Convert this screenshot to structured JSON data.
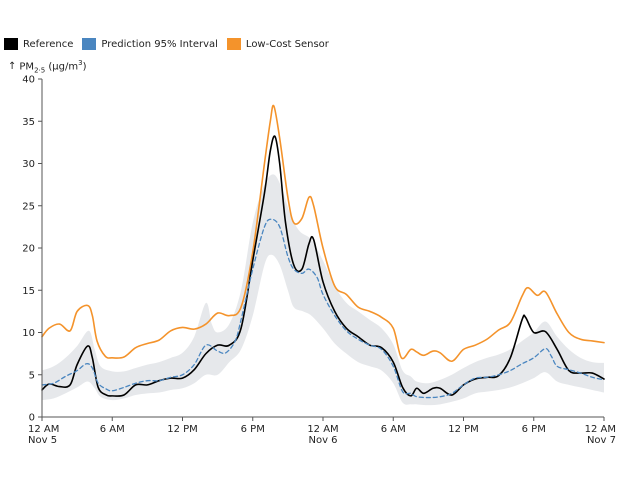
{
  "chart_data": {
    "type": "line",
    "ylabel": "PM",
    "ylabel_sub": "2·5",
    "ylabel_unit_pre": " (μg/m",
    "ylabel_unit_sup": "3",
    "ylabel_unit_post": ")",
    "ylim": [
      0,
      40
    ],
    "yticks": [
      0,
      5,
      10,
      15,
      20,
      25,
      30,
      35,
      40
    ],
    "xlim_hours": [
      0,
      48
    ],
    "xticks": [
      {
        "h": 0,
        "line1": "12 AM",
        "line2": "Nov 5"
      },
      {
        "h": 6,
        "line1": "6 AM",
        "line2": ""
      },
      {
        "h": 12,
        "line1": "12 PM",
        "line2": ""
      },
      {
        "h": 18,
        "line1": "6 PM",
        "line2": ""
      },
      {
        "h": 24,
        "line1": "12 AM",
        "line2": "Nov 6"
      },
      {
        "h": 30,
        "line1": "6 AM",
        "line2": ""
      },
      {
        "h": 36,
        "line1": "12 PM",
        "line2": ""
      },
      {
        "h": 42,
        "line1": "6 PM",
        "line2": ""
      },
      {
        "h": 48,
        "line1": "12 AM",
        "line2": "Nov 7"
      }
    ],
    "legend": [
      {
        "name": "Reference",
        "color": "#000000"
      },
      {
        "name": "Prediction 95% Interval",
        "color": "#4a86c0"
      },
      {
        "name": "Low-Cost Sensor",
        "color": "#f4932b"
      }
    ],
    "series": [
      {
        "name": "Low-Cost Sensor",
        "color": "#f4932b",
        "points": [
          [
            0,
            9.5
          ],
          [
            0.6,
            10.5
          ],
          [
            1.5,
            11.0
          ],
          [
            2.4,
            10.2
          ],
          [
            3,
            12.5
          ],
          [
            3.9,
            13.2
          ],
          [
            4.3,
            12.0
          ],
          [
            4.7,
            9.0
          ],
          [
            5.4,
            7.2
          ],
          [
            6,
            7.0
          ],
          [
            7,
            7.1
          ],
          [
            8,
            8.2
          ],
          [
            9,
            8.7
          ],
          [
            10,
            9.1
          ],
          [
            11,
            10.2
          ],
          [
            12,
            10.6
          ],
          [
            13,
            10.4
          ],
          [
            14,
            11.0
          ],
          [
            15,
            12.3
          ],
          [
            16,
            12.0
          ],
          [
            17,
            13.0
          ],
          [
            18,
            19.5
          ],
          [
            19,
            30.0
          ],
          [
            19.5,
            35.0
          ],
          [
            19.8,
            36.8
          ],
          [
            20.3,
            33.0
          ],
          [
            21,
            26.0
          ],
          [
            21.5,
            23.0
          ],
          [
            22.2,
            23.5
          ],
          [
            22.8,
            26.0
          ],
          [
            23.2,
            25.0
          ],
          [
            24,
            20.0
          ],
          [
            25,
            15.5
          ],
          [
            26,
            14.5
          ],
          [
            27,
            13.0
          ],
          [
            28,
            12.5
          ],
          [
            29,
            11.8
          ],
          [
            30,
            10.5
          ],
          [
            30.7,
            7.0
          ],
          [
            31.5,
            8.0
          ],
          [
            32,
            7.7
          ],
          [
            32.6,
            7.3
          ],
          [
            33.4,
            7.8
          ],
          [
            34,
            7.6
          ],
          [
            35,
            6.6
          ],
          [
            36,
            8.0
          ],
          [
            37,
            8.5
          ],
          [
            38,
            9.2
          ],
          [
            39,
            10.3
          ],
          [
            40,
            11.2
          ],
          [
            41,
            14.3
          ],
          [
            41.5,
            15.3
          ],
          [
            42.3,
            14.4
          ],
          [
            43,
            14.8
          ],
          [
            44,
            12.2
          ],
          [
            45,
            10.0
          ],
          [
            46,
            9.2
          ],
          [
            47,
            9.0
          ],
          [
            48,
            8.8
          ]
        ]
      },
      {
        "name": "Reference",
        "color": "#000000",
        "points": [
          [
            0,
            3.2
          ],
          [
            0.6,
            3.9
          ],
          [
            1.5,
            3.6
          ],
          [
            2.4,
            3.8
          ],
          [
            3,
            6.2
          ],
          [
            3.9,
            8.4
          ],
          [
            4.3,
            7.0
          ],
          [
            4.8,
            3.5
          ],
          [
            5.5,
            2.6
          ],
          [
            6,
            2.5
          ],
          [
            7,
            2.6
          ],
          [
            8,
            3.8
          ],
          [
            9,
            3.8
          ],
          [
            10,
            4.3
          ],
          [
            11,
            4.6
          ],
          [
            12,
            4.6
          ],
          [
            13,
            5.6
          ],
          [
            14,
            7.5
          ],
          [
            15,
            8.5
          ],
          [
            16,
            8.5
          ],
          [
            17,
            10.5
          ],
          [
            18,
            18.5
          ],
          [
            19,
            26.5
          ],
          [
            19.5,
            31.5
          ],
          [
            19.9,
            33.2
          ],
          [
            20.3,
            30.0
          ],
          [
            20.8,
            23.0
          ],
          [
            21.5,
            18.0
          ],
          [
            22.2,
            17.5
          ],
          [
            22.8,
            20.5
          ],
          [
            23.2,
            21.0
          ],
          [
            24,
            16.0
          ],
          [
            25,
            12.5
          ],
          [
            26,
            10.5
          ],
          [
            27,
            9.5
          ],
          [
            28,
            8.5
          ],
          [
            29,
            8.2
          ],
          [
            30,
            6.5
          ],
          [
            30.8,
            3.5
          ],
          [
            31.5,
            2.5
          ],
          [
            32,
            3.4
          ],
          [
            32.6,
            2.8
          ],
          [
            33.4,
            3.4
          ],
          [
            34,
            3.4
          ],
          [
            35,
            2.6
          ],
          [
            36,
            3.8
          ],
          [
            37,
            4.5
          ],
          [
            38,
            4.7
          ],
          [
            39,
            4.9
          ],
          [
            40,
            7.0
          ],
          [
            41,
            11.5
          ],
          [
            41.3,
            11.8
          ],
          [
            42,
            10.0
          ],
          [
            43,
            10.1
          ],
          [
            44,
            8.0
          ],
          [
            45,
            5.5
          ],
          [
            46,
            5.2
          ],
          [
            47,
            5.2
          ],
          [
            48,
            4.5
          ]
        ]
      },
      {
        "name": "Prediction Mean",
        "color": "#4a86c0",
        "dashed": true,
        "points": [
          [
            0,
            3.8
          ],
          [
            1,
            4.0
          ],
          [
            2,
            4.8
          ],
          [
            3,
            5.5
          ],
          [
            3.8,
            6.3
          ],
          [
            4.3,
            5.8
          ],
          [
            4.8,
            4.0
          ],
          [
            5.5,
            3.3
          ],
          [
            6,
            3.1
          ],
          [
            7,
            3.5
          ],
          [
            8,
            4.0
          ],
          [
            9,
            4.3
          ],
          [
            10,
            4.3
          ],
          [
            11,
            4.7
          ],
          [
            12,
            5.0
          ],
          [
            13,
            6.2
          ],
          [
            14,
            8.5
          ],
          [
            15,
            7.8
          ],
          [
            15.7,
            7.6
          ],
          [
            16.5,
            9.0
          ],
          [
            17,
            11.5
          ],
          [
            18,
            17.5
          ],
          [
            19,
            22.5
          ],
          [
            19.6,
            23.4
          ],
          [
            20.3,
            22.5
          ],
          [
            21,
            19.0
          ],
          [
            21.5,
            17.5
          ],
          [
            22.2,
            17.0
          ],
          [
            22.8,
            17.5
          ],
          [
            23.5,
            16.5
          ],
          [
            24,
            14.5
          ],
          [
            25,
            12.0
          ],
          [
            26,
            10.2
          ],
          [
            27,
            9.2
          ],
          [
            28,
            8.5
          ],
          [
            29,
            8.0
          ],
          [
            30,
            6.0
          ],
          [
            30.8,
            3.0
          ],
          [
            31.5,
            2.8
          ],
          [
            32,
            2.4
          ],
          [
            33,
            2.3
          ],
          [
            34,
            2.4
          ],
          [
            35,
            2.8
          ],
          [
            36,
            3.8
          ],
          [
            37,
            4.6
          ],
          [
            38,
            4.7
          ],
          [
            39,
            5.0
          ],
          [
            40,
            5.5
          ],
          [
            41,
            6.3
          ],
          [
            42,
            7.0
          ],
          [
            43,
            8.1
          ],
          [
            43.5,
            7.2
          ],
          [
            44,
            6.0
          ],
          [
            45,
            5.6
          ],
          [
            46,
            5.2
          ],
          [
            47,
            4.7
          ],
          [
            48,
            4.4
          ]
        ]
      }
    ],
    "interval": {
      "name": "Prediction 95% Interval",
      "color": "#e6e8eb",
      "upper": [
        [
          0,
          5.5
        ],
        [
          1,
          6.0
        ],
        [
          2,
          7.0
        ],
        [
          3,
          8.4
        ],
        [
          4,
          10.2
        ],
        [
          4.5,
          8.0
        ],
        [
          5,
          6.0
        ],
        [
          6,
          5.4
        ],
        [
          7,
          5.4
        ],
        [
          8,
          5.8
        ],
        [
          9,
          6.2
        ],
        [
          10,
          6.5
        ],
        [
          11,
          7.0
        ],
        [
          12,
          7.6
        ],
        [
          13,
          9.5
        ],
        [
          14,
          13.5
        ],
        [
          14.5,
          11.0
        ],
        [
          15,
          10.0
        ],
        [
          16,
          11.0
        ],
        [
          17,
          15.0
        ],
        [
          18,
          23.0
        ],
        [
          19,
          27.5
        ],
        [
          19.8,
          28.7
        ],
        [
          20.5,
          27.0
        ],
        [
          21.2,
          24.0
        ],
        [
          22,
          22.0
        ],
        [
          23,
          21.0
        ],
        [
          24,
          18.5
        ],
        [
          25,
          15.5
        ],
        [
          26,
          13.5
        ],
        [
          27,
          12.5
        ],
        [
          28,
          11.5
        ],
        [
          29,
          10.5
        ],
        [
          30,
          8.6
        ],
        [
          30.8,
          5.5
        ],
        [
          31.5,
          4.8
        ],
        [
          32,
          4.2
        ],
        [
          33,
          4.0
        ],
        [
          34,
          4.4
        ],
        [
          35,
          5.0
        ],
        [
          36,
          5.8
        ],
        [
          37,
          6.5
        ],
        [
          38,
          7.0
        ],
        [
          39,
          7.4
        ],
        [
          40,
          8.0
        ],
        [
          41,
          9.0
        ],
        [
          42,
          10.0
        ],
        [
          43,
          11.3
        ],
        [
          44,
          9.5
        ],
        [
          45,
          8.0
        ],
        [
          46,
          7.0
        ],
        [
          47,
          6.5
        ],
        [
          48,
          6.4
        ]
      ],
      "lower": [
        [
          0,
          2.0
        ],
        [
          1,
          2.2
        ],
        [
          2,
          2.8
        ],
        [
          3,
          3.5
        ],
        [
          3.9,
          4.2
        ],
        [
          4.5,
          3.4
        ],
        [
          5,
          2.4
        ],
        [
          6,
          2.0
        ],
        [
          7,
          2.2
        ],
        [
          8,
          2.6
        ],
        [
          9,
          2.8
        ],
        [
          10,
          2.9
        ],
        [
          11,
          3.2
        ],
        [
          12,
          3.4
        ],
        [
          13,
          4.0
        ],
        [
          14,
          5.0
        ],
        [
          15,
          5.0
        ],
        [
          16,
          6.5
        ],
        [
          17,
          8.0
        ],
        [
          18,
          12.0
        ],
        [
          19,
          18.0
        ],
        [
          19.6,
          19.2
        ],
        [
          20.3,
          18.0
        ],
        [
          21,
          15.0
        ],
        [
          21.5,
          13.0
        ],
        [
          22.3,
          12.5
        ],
        [
          23,
          12.0
        ],
        [
          24,
          10.5
        ],
        [
          25,
          8.7
        ],
        [
          26,
          7.5
        ],
        [
          27,
          6.5
        ],
        [
          28,
          6.0
        ],
        [
          29,
          5.5
        ],
        [
          30,
          4.0
        ],
        [
          30.8,
          1.7
        ],
        [
          31.5,
          1.5
        ],
        [
          32,
          1.5
        ],
        [
          33,
          1.4
        ],
        [
          34,
          1.5
        ],
        [
          35,
          1.8
        ],
        [
          36,
          2.2
        ],
        [
          37,
          2.8
        ],
        [
          38,
          3.0
        ],
        [
          39,
          3.2
        ],
        [
          40,
          3.5
        ],
        [
          41,
          4.0
        ],
        [
          42,
          4.6
        ],
        [
          43,
          5.3
        ],
        [
          44,
          4.2
        ],
        [
          45,
          3.8
        ],
        [
          46,
          3.5
        ],
        [
          47,
          3.2
        ],
        [
          48,
          2.9
        ]
      ]
    }
  }
}
